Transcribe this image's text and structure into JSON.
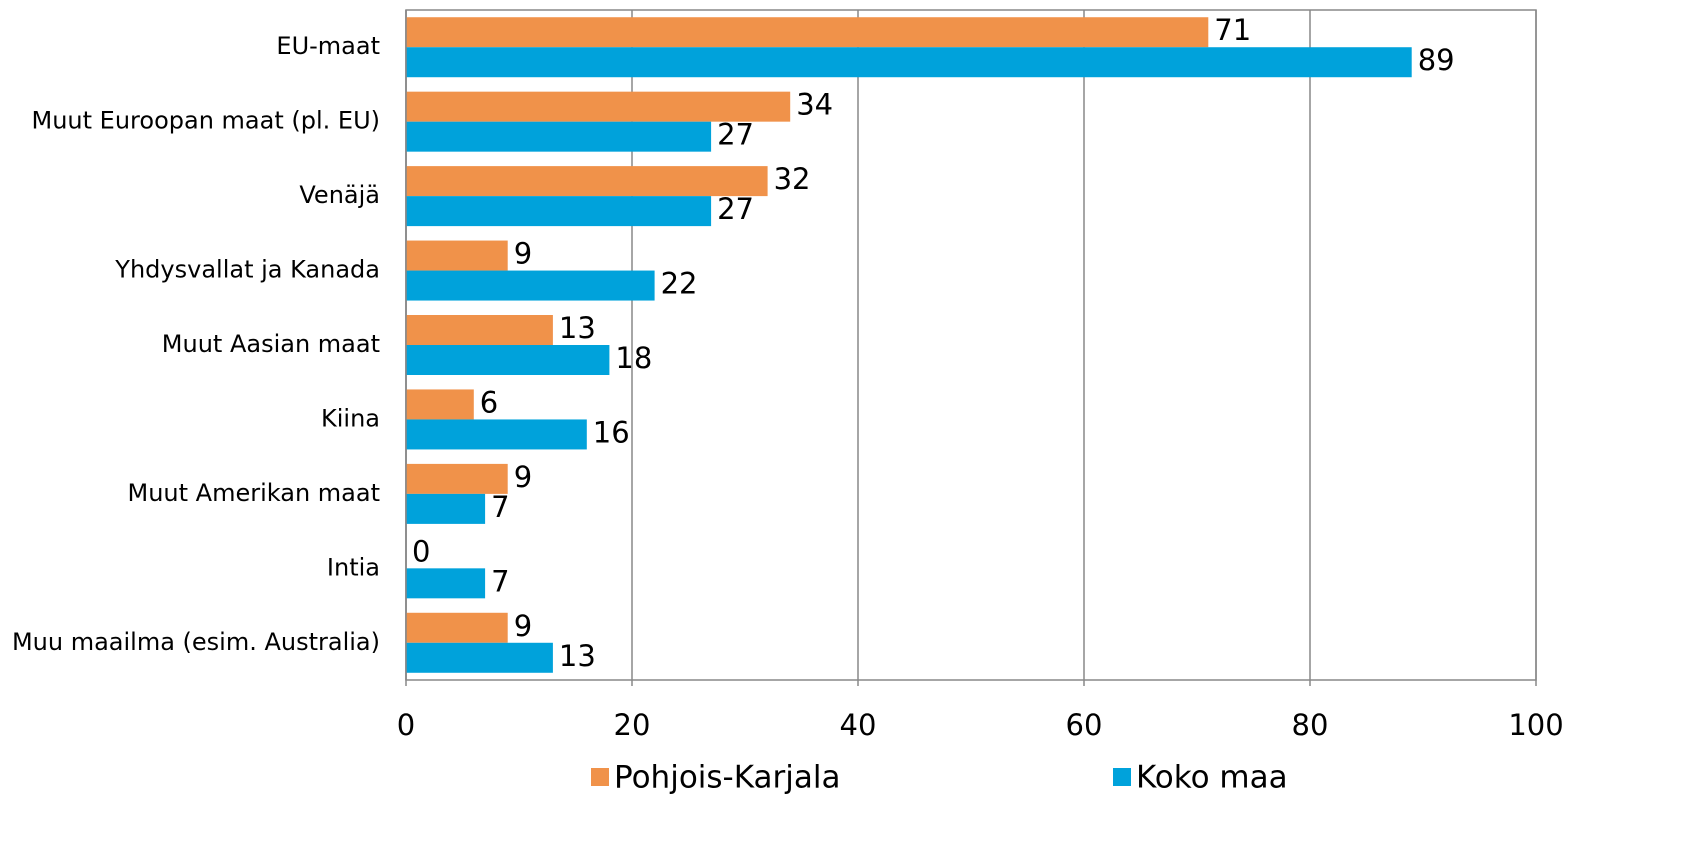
{
  "chart_data": {
    "type": "bar",
    "orientation": "horizontal",
    "categories": [
      "EU-maat",
      "Muut Euroopan maat (pl. EU)",
      "Venäjä",
      "Yhdysvallat ja Kanada",
      "Muut Aasian maat",
      "Kiina",
      "Muut Amerikan maat",
      "Intia",
      "Muu maailma (esim. Australia)"
    ],
    "series": [
      {
        "name": "Pohjois-Karjala",
        "color": "#f0924a",
        "values": [
          71,
          34,
          32,
          9,
          13,
          6,
          9,
          0,
          9
        ]
      },
      {
        "name": "Koko maa",
        "color": "#00a2db",
        "values": [
          89,
          27,
          27,
          22,
          18,
          16,
          7,
          7,
          13
        ]
      }
    ],
    "xlim": [
      0,
      100
    ],
    "xticks": [
      0,
      20,
      40,
      60,
      80,
      100
    ],
    "grid": true,
    "legend": "bottom"
  }
}
